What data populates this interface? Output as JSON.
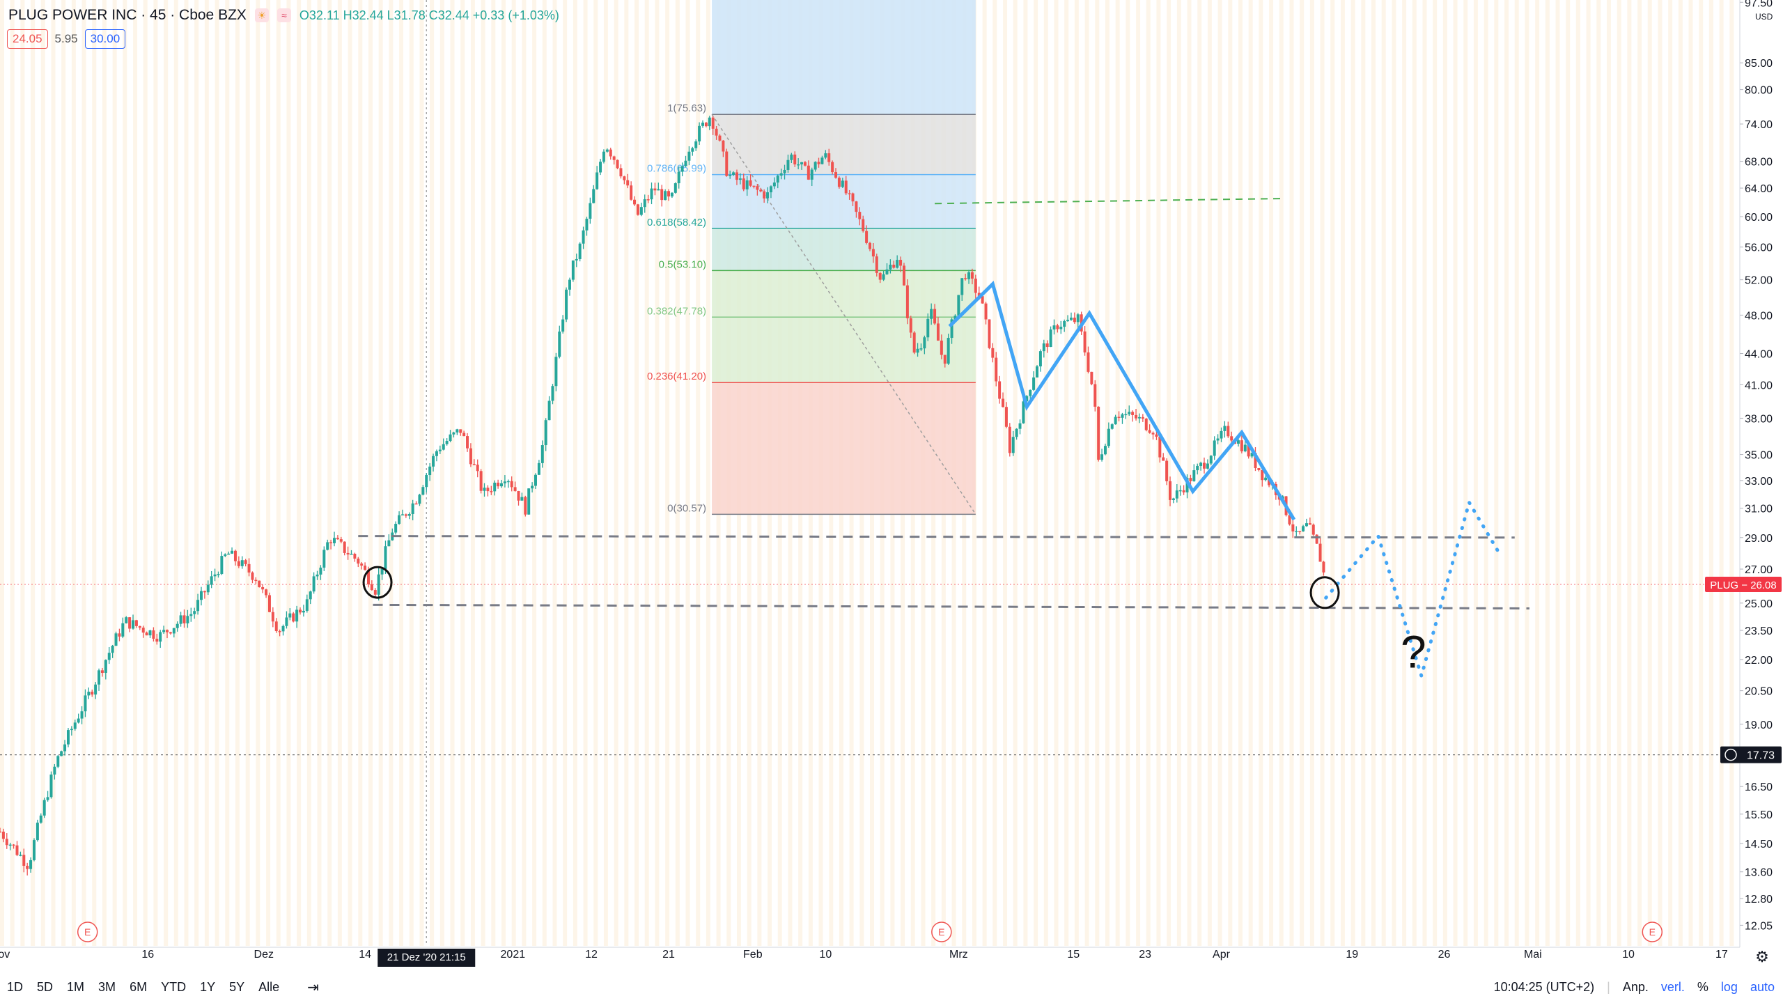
{
  "symbol": {
    "title": "PLUG POWER INC · 45 · Cboe BZX",
    "ohlc": "O32.11 H32.44 L31.78 C32.44 +0.33 (+1.03%)",
    "inputs": [
      "24.05",
      "5.95",
      "30.00"
    ],
    "last_price_label": "PLUG − 26.08",
    "crosshair_price": "17.73",
    "crosshair_time": "21 Dez '20   21:15",
    "currency": "USD"
  },
  "colors": {
    "up": "#26a69a",
    "down": "#ef5350",
    "drawing": "#42a5f5",
    "fib_blue": "#cfe5f8",
    "fib_gray": "#e0e0e0",
    "fib_teal": "#cde9e2",
    "fib_green": "#dcefd3",
    "fib_red": "#f9d3cc",
    "price_tag": "#f23645"
  },
  "bottom_bar": {
    "ranges": [
      "1D",
      "5D",
      "1M",
      "3M",
      "6M",
      "YTD",
      "1Y",
      "5Y",
      "Alle"
    ],
    "clock": "10:04:25 (UTC+2)",
    "options": [
      "Anp.",
      "verl.",
      "%",
      "log",
      "auto"
    ]
  },
  "chart_data": {
    "type": "candlestick",
    "title": "PLUG POWER INC · 45 · Cboe BZX",
    "scale": "log",
    "ylim": [
      11.5,
      98
    ],
    "y_ticks": [
      12.05,
      12.8,
      13.6,
      14.5,
      15.5,
      16.5,
      17.73,
      19.0,
      20.5,
      22.0,
      23.5,
      25.0,
      27.0,
      29.0,
      31.0,
      33.0,
      35.0,
      38.0,
      41.0,
      44.0,
      48.0,
      52.0,
      56.0,
      60.0,
      64.0,
      68.0,
      74.0,
      80.0,
      85.0,
      97.5
    ],
    "x_ticks": [
      {
        "label": "Nov",
        "i": 0
      },
      {
        "label": "16",
        "i": 130
      },
      {
        "label": "Dez",
        "i": 232
      },
      {
        "label": "14",
        "i": 321
      },
      {
        "label": "2021",
        "i": 451
      },
      {
        "label": "12",
        "i": 520
      },
      {
        "label": "21",
        "i": 588
      },
      {
        "label": "Feb",
        "i": 662
      },
      {
        "label": "10",
        "i": 726
      },
      {
        "label": "Mrz",
        "i": 843
      },
      {
        "label": "15",
        "i": 944
      },
      {
        "label": "23",
        "i": 1007
      },
      {
        "label": "Apr",
        "i": 1074
      },
      {
        "label": "19",
        "i": 1189
      },
      {
        "label": "26",
        "i": 1270
      },
      {
        "label": "Mai",
        "i": 1348
      },
      {
        "label": "10",
        "i": 1432
      },
      {
        "label": "17",
        "i": 1514
      }
    ],
    "price_path": [
      [
        0,
        14.9
      ],
      [
        25,
        13.8
      ],
      [
        50,
        17.5
      ],
      [
        80,
        20.5
      ],
      [
        110,
        24.0
      ],
      [
        140,
        23.2
      ],
      [
        170,
        24.5
      ],
      [
        200,
        28.0
      ],
      [
        225,
        26.5
      ],
      [
        245,
        23.5
      ],
      [
        270,
        25.0
      ],
      [
        290,
        29.0
      ],
      [
        315,
        27.5
      ],
      [
        330,
        25.8
      ],
      [
        345,
        29.5
      ],
      [
        365,
        31.5
      ],
      [
        385,
        35.5
      ],
      [
        405,
        37.0
      ],
      [
        425,
        32.0
      ],
      [
        445,
        33.5
      ],
      [
        462,
        31.0
      ],
      [
        478,
        36.0
      ],
      [
        490,
        44.0
      ],
      [
        500,
        52.0
      ],
      [
        510,
        56.0
      ],
      [
        520,
        62.0
      ],
      [
        532,
        71.0
      ],
      [
        545,
        67.0
      ],
      [
        560,
        60.0
      ],
      [
        575,
        64.0
      ],
      [
        590,
        62.0
      ],
      [
        605,
        70.0
      ],
      [
        625,
        75.6
      ],
      [
        640,
        66.0
      ],
      [
        660,
        64.0
      ],
      [
        675,
        63.0
      ],
      [
        695,
        69.0
      ],
      [
        710,
        66.0
      ],
      [
        725,
        69.0
      ],
      [
        745,
        63.0
      ],
      [
        760,
        58.0
      ],
      [
        775,
        52.0
      ],
      [
        790,
        55.0
      ],
      [
        803,
        44.0
      ],
      [
        810,
        45.0
      ],
      [
        818,
        48.5
      ],
      [
        830,
        43.0
      ],
      [
        848,
        53.0
      ],
      [
        862,
        50.0
      ],
      [
        875,
        42.0
      ],
      [
        888,
        35.5
      ],
      [
        900,
        39.0
      ],
      [
        915,
        44.0
      ],
      [
        930,
        47.0
      ],
      [
        948,
        47.5
      ],
      [
        962,
        40.0
      ],
      [
        966,
        34.5
      ],
      [
        980,
        38.5
      ],
      [
        1000,
        38.0
      ],
      [
        1015,
        37.0
      ],
      [
        1030,
        31.5
      ],
      [
        1045,
        33.0
      ],
      [
        1060,
        34.5
      ],
      [
        1078,
        37.0
      ],
      [
        1095,
        35.5
      ],
      [
        1110,
        33.5
      ],
      [
        1125,
        32.0
      ],
      [
        1140,
        29.0
      ],
      [
        1150,
        29.8
      ],
      [
        1160,
        28.0
      ],
      [
        1166,
        26.1
      ]
    ],
    "fibonacci": {
      "levels": [
        {
          "ratio": "1",
          "price": 75.63,
          "label": "1(75.63)"
        },
        {
          "ratio": "0.786",
          "price": 65.99,
          "label": "0.786(65.99)"
        },
        {
          "ratio": "0.618",
          "price": 58.42,
          "label": "0.618(58.42)"
        },
        {
          "ratio": "0.5",
          "price": 53.1,
          "label": "0.5(53.10)"
        },
        {
          "ratio": "0.382",
          "price": 47.78,
          "label": "0.382(47.78)"
        },
        {
          "ratio": "0.236",
          "price": 41.2,
          "label": "0.236(41.20)"
        },
        {
          "ratio": "0",
          "price": 30.57,
          "label": "0(30.57)"
        }
      ],
      "start_i": 626,
      "end_i": 858
    },
    "drawings": {
      "blue_zigzag": [
        [
          835,
          46.8
        ],
        [
          873,
          51.5
        ],
        [
          903,
          39.0
        ],
        [
          958,
          48.2
        ],
        [
          1049,
          32.2
        ],
        [
          1092,
          36.8
        ],
        [
          1138,
          30.2
        ]
      ],
      "projection": [
        [
          1166,
          25.3
        ],
        [
          1212,
          29.1
        ],
        [
          1250,
          21.2
        ],
        [
          1292,
          31.4
        ],
        [
          1320,
          27.8
        ]
      ],
      "question_mark": "?",
      "green_resistance": {
        "from": [
          822,
          61.8
        ],
        "to": [
          1126,
          62.5
        ]
      },
      "gray_support_upper": {
        "from": [
          315,
          29.1
        ],
        "to": [
          1332,
          29.0
        ]
      },
      "gray_support_lower": {
        "from": [
          328,
          24.9
        ],
        "to": [
          1345,
          24.7
        ]
      },
      "circles": [
        [
          332,
          26.2
        ],
        [
          1165,
          25.6
        ]
      ],
      "earnings_markers": [
        {
          "i": 77,
          "label": "E"
        },
        {
          "i": 828,
          "label": "E"
        },
        {
          "i": 1453,
          "label": "E"
        }
      ]
    },
    "last_price": 26.08
  }
}
